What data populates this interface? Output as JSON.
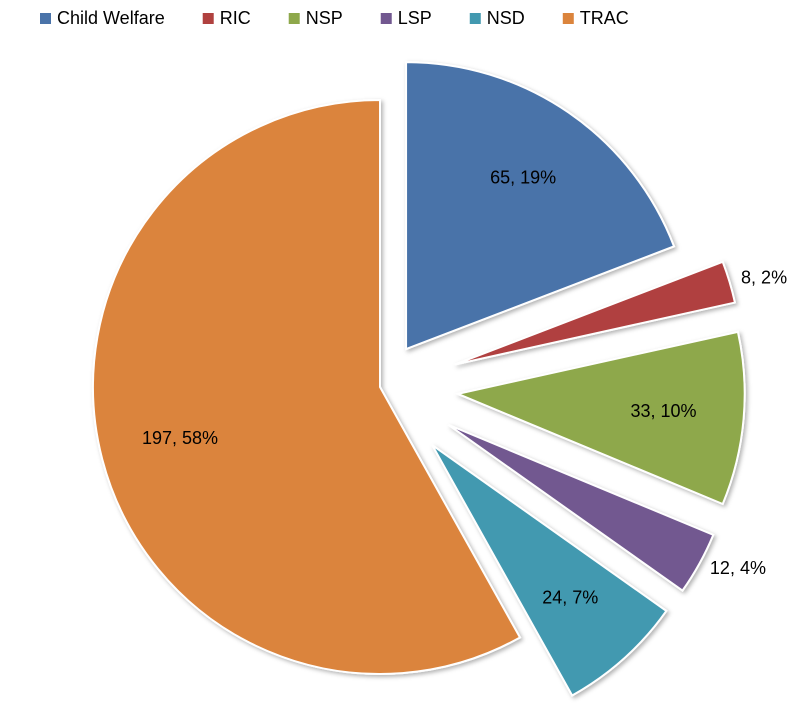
{
  "chart_data": {
    "type": "pie",
    "categories": [
      "Child Welfare",
      "RIC",
      "NSP",
      "LSP",
      "NSD",
      "TRAC"
    ],
    "values": [
      65,
      8,
      33,
      12,
      24,
      197
    ],
    "value_labels": [
      "65, 19%",
      "8, 2%",
      "33, 10%",
      "12, 4%",
      "24, 7%",
      "197, 58%"
    ],
    "colors": [
      "#4a73a9",
      "#b0413f",
      "#8ea84b",
      "#725890",
      "#4299b0",
      "#db843c"
    ],
    "legend": "top"
  }
}
